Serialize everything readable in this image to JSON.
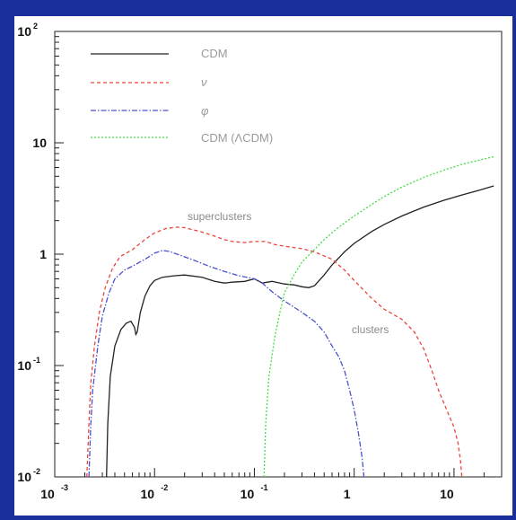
{
  "chart_data": {
    "type": "line",
    "xscale": "log",
    "yscale": "log",
    "xlim": [
      0.001,
      30
    ],
    "ylim": [
      0.01,
      100
    ],
    "x_ticks": [
      {
        "base": "10",
        "exp": "-3"
      },
      {
        "base": "10",
        "exp": "-2"
      },
      {
        "base": "10",
        "exp": "-1"
      },
      {
        "base": "1",
        "exp": ""
      },
      {
        "base": "10",
        "exp": ""
      }
    ],
    "y_ticks": [
      {
        "base": "10",
        "exp": "-2"
      },
      {
        "base": "10",
        "exp": "-1"
      },
      {
        "base": "1",
        "exp": ""
      },
      {
        "base": "10",
        "exp": ""
      },
      {
        "base": "10",
        "exp": "2"
      }
    ],
    "grid": false,
    "legend_position": "top-left",
    "series": [
      {
        "name": "CDM",
        "color": "#222222",
        "dash": "solid",
        "points": [
          [
            0.0033,
            0.01
          ],
          [
            0.0034,
            0.03
          ],
          [
            0.0036,
            0.08
          ],
          [
            0.004,
            0.15
          ],
          [
            0.0046,
            0.21
          ],
          [
            0.0052,
            0.24
          ],
          [
            0.0058,
            0.25
          ],
          [
            0.0063,
            0.22
          ],
          [
            0.0065,
            0.19
          ],
          [
            0.0067,
            0.2
          ],
          [
            0.0072,
            0.3
          ],
          [
            0.008,
            0.42
          ],
          [
            0.009,
            0.52
          ],
          [
            0.01,
            0.58
          ],
          [
            0.012,
            0.62
          ],
          [
            0.016,
            0.64
          ],
          [
            0.02,
            0.65
          ],
          [
            0.03,
            0.62
          ],
          [
            0.04,
            0.57
          ],
          [
            0.05,
            0.55
          ],
          [
            0.06,
            0.56
          ],
          [
            0.08,
            0.57
          ],
          [
            0.1,
            0.6
          ],
          [
            0.12,
            0.55
          ],
          [
            0.15,
            0.57
          ],
          [
            0.2,
            0.54
          ],
          [
            0.25,
            0.53
          ],
          [
            0.3,
            0.51
          ],
          [
            0.35,
            0.5
          ],
          [
            0.4,
            0.52
          ],
          [
            0.5,
            0.65
          ],
          [
            0.6,
            0.8
          ],
          [
            0.8,
            1.05
          ],
          [
            1,
            1.25
          ],
          [
            1.5,
            1.6
          ],
          [
            2,
            1.85
          ],
          [
            3,
            2.2
          ],
          [
            5,
            2.65
          ],
          [
            8,
            3.05
          ],
          [
            12,
            3.4
          ],
          [
            18,
            3.75
          ],
          [
            25,
            4.1
          ]
        ]
      },
      {
        "name": "ν",
        "color": "#e8453c",
        "dash": "4,3",
        "points": [
          [
            0.0021,
            0.01
          ],
          [
            0.0022,
            0.03
          ],
          [
            0.0023,
            0.07
          ],
          [
            0.0025,
            0.15
          ],
          [
            0.0028,
            0.3
          ],
          [
            0.0032,
            0.5
          ],
          [
            0.0038,
            0.75
          ],
          [
            0.0045,
            0.95
          ],
          [
            0.006,
            1.1
          ],
          [
            0.008,
            1.35
          ],
          [
            0.01,
            1.55
          ],
          [
            0.013,
            1.7
          ],
          [
            0.017,
            1.75
          ],
          [
            0.02,
            1.73
          ],
          [
            0.03,
            1.58
          ],
          [
            0.04,
            1.45
          ],
          [
            0.05,
            1.35
          ],
          [
            0.06,
            1.3
          ],
          [
            0.08,
            1.27
          ],
          [
            0.1,
            1.3
          ],
          [
            0.13,
            1.3
          ],
          [
            0.16,
            1.22
          ],
          [
            0.2,
            1.18
          ],
          [
            0.3,
            1.12
          ],
          [
            0.4,
            1.05
          ],
          [
            0.6,
            0.9
          ],
          [
            0.8,
            0.72
          ],
          [
            1,
            0.58
          ],
          [
            1.5,
            0.4
          ],
          [
            2,
            0.32
          ],
          [
            3,
            0.26
          ],
          [
            4,
            0.2
          ],
          [
            5,
            0.14
          ],
          [
            6,
            0.09
          ],
          [
            7,
            0.06
          ],
          [
            8,
            0.045
          ],
          [
            9,
            0.035
          ],
          [
            10,
            0.028
          ],
          [
            11,
            0.02
          ],
          [
            11.6,
            0.014
          ],
          [
            12,
            0.01
          ]
        ]
      },
      {
        "name": "φ",
        "color": "#4a52cc",
        "dash": "6,2,1.5,2",
        "points": [
          [
            0.0022,
            0.01
          ],
          [
            0.0023,
            0.03
          ],
          [
            0.0024,
            0.06
          ],
          [
            0.0027,
            0.15
          ],
          [
            0.003,
            0.28
          ],
          [
            0.0035,
            0.45
          ],
          [
            0.004,
            0.6
          ],
          [
            0.005,
            0.72
          ],
          [
            0.006,
            0.78
          ],
          [
            0.008,
            0.9
          ],
          [
            0.01,
            1.02
          ],
          [
            0.012,
            1.08
          ],
          [
            0.014,
            1.06
          ],
          [
            0.018,
            0.98
          ],
          [
            0.025,
            0.88
          ],
          [
            0.035,
            0.78
          ],
          [
            0.05,
            0.7
          ],
          [
            0.07,
            0.64
          ],
          [
            0.1,
            0.6
          ],
          [
            0.12,
            0.55
          ],
          [
            0.15,
            0.46
          ],
          [
            0.2,
            0.38
          ],
          [
            0.3,
            0.3
          ],
          [
            0.4,
            0.25
          ],
          [
            0.5,
            0.2
          ],
          [
            0.6,
            0.15
          ],
          [
            0.7,
            0.12
          ],
          [
            0.8,
            0.09
          ],
          [
            0.9,
            0.06
          ],
          [
            1,
            0.04
          ],
          [
            1.1,
            0.025
          ],
          [
            1.2,
            0.015
          ],
          [
            1.25,
            0.01
          ]
        ]
      },
      {
        "name": "CDM (ΛCDM)",
        "color": "#44dd44",
        "dash": "2,2",
        "points": [
          [
            0.125,
            0.01
          ],
          [
            0.13,
            0.03
          ],
          [
            0.14,
            0.08
          ],
          [
            0.16,
            0.18
          ],
          [
            0.18,
            0.3
          ],
          [
            0.2,
            0.45
          ],
          [
            0.25,
            0.65
          ],
          [
            0.3,
            0.85
          ],
          [
            0.4,
            1.1
          ],
          [
            0.5,
            1.35
          ],
          [
            0.7,
            1.75
          ],
          [
            1,
            2.2
          ],
          [
            1.5,
            2.8
          ],
          [
            2,
            3.3
          ],
          [
            3,
            4.0
          ],
          [
            5,
            4.9
          ],
          [
            8,
            5.7
          ],
          [
            12,
            6.4
          ],
          [
            18,
            7.0
          ],
          [
            25,
            7.5
          ]
        ]
      }
    ],
    "annotations": [
      "superclusters",
      "clusters"
    ]
  }
}
